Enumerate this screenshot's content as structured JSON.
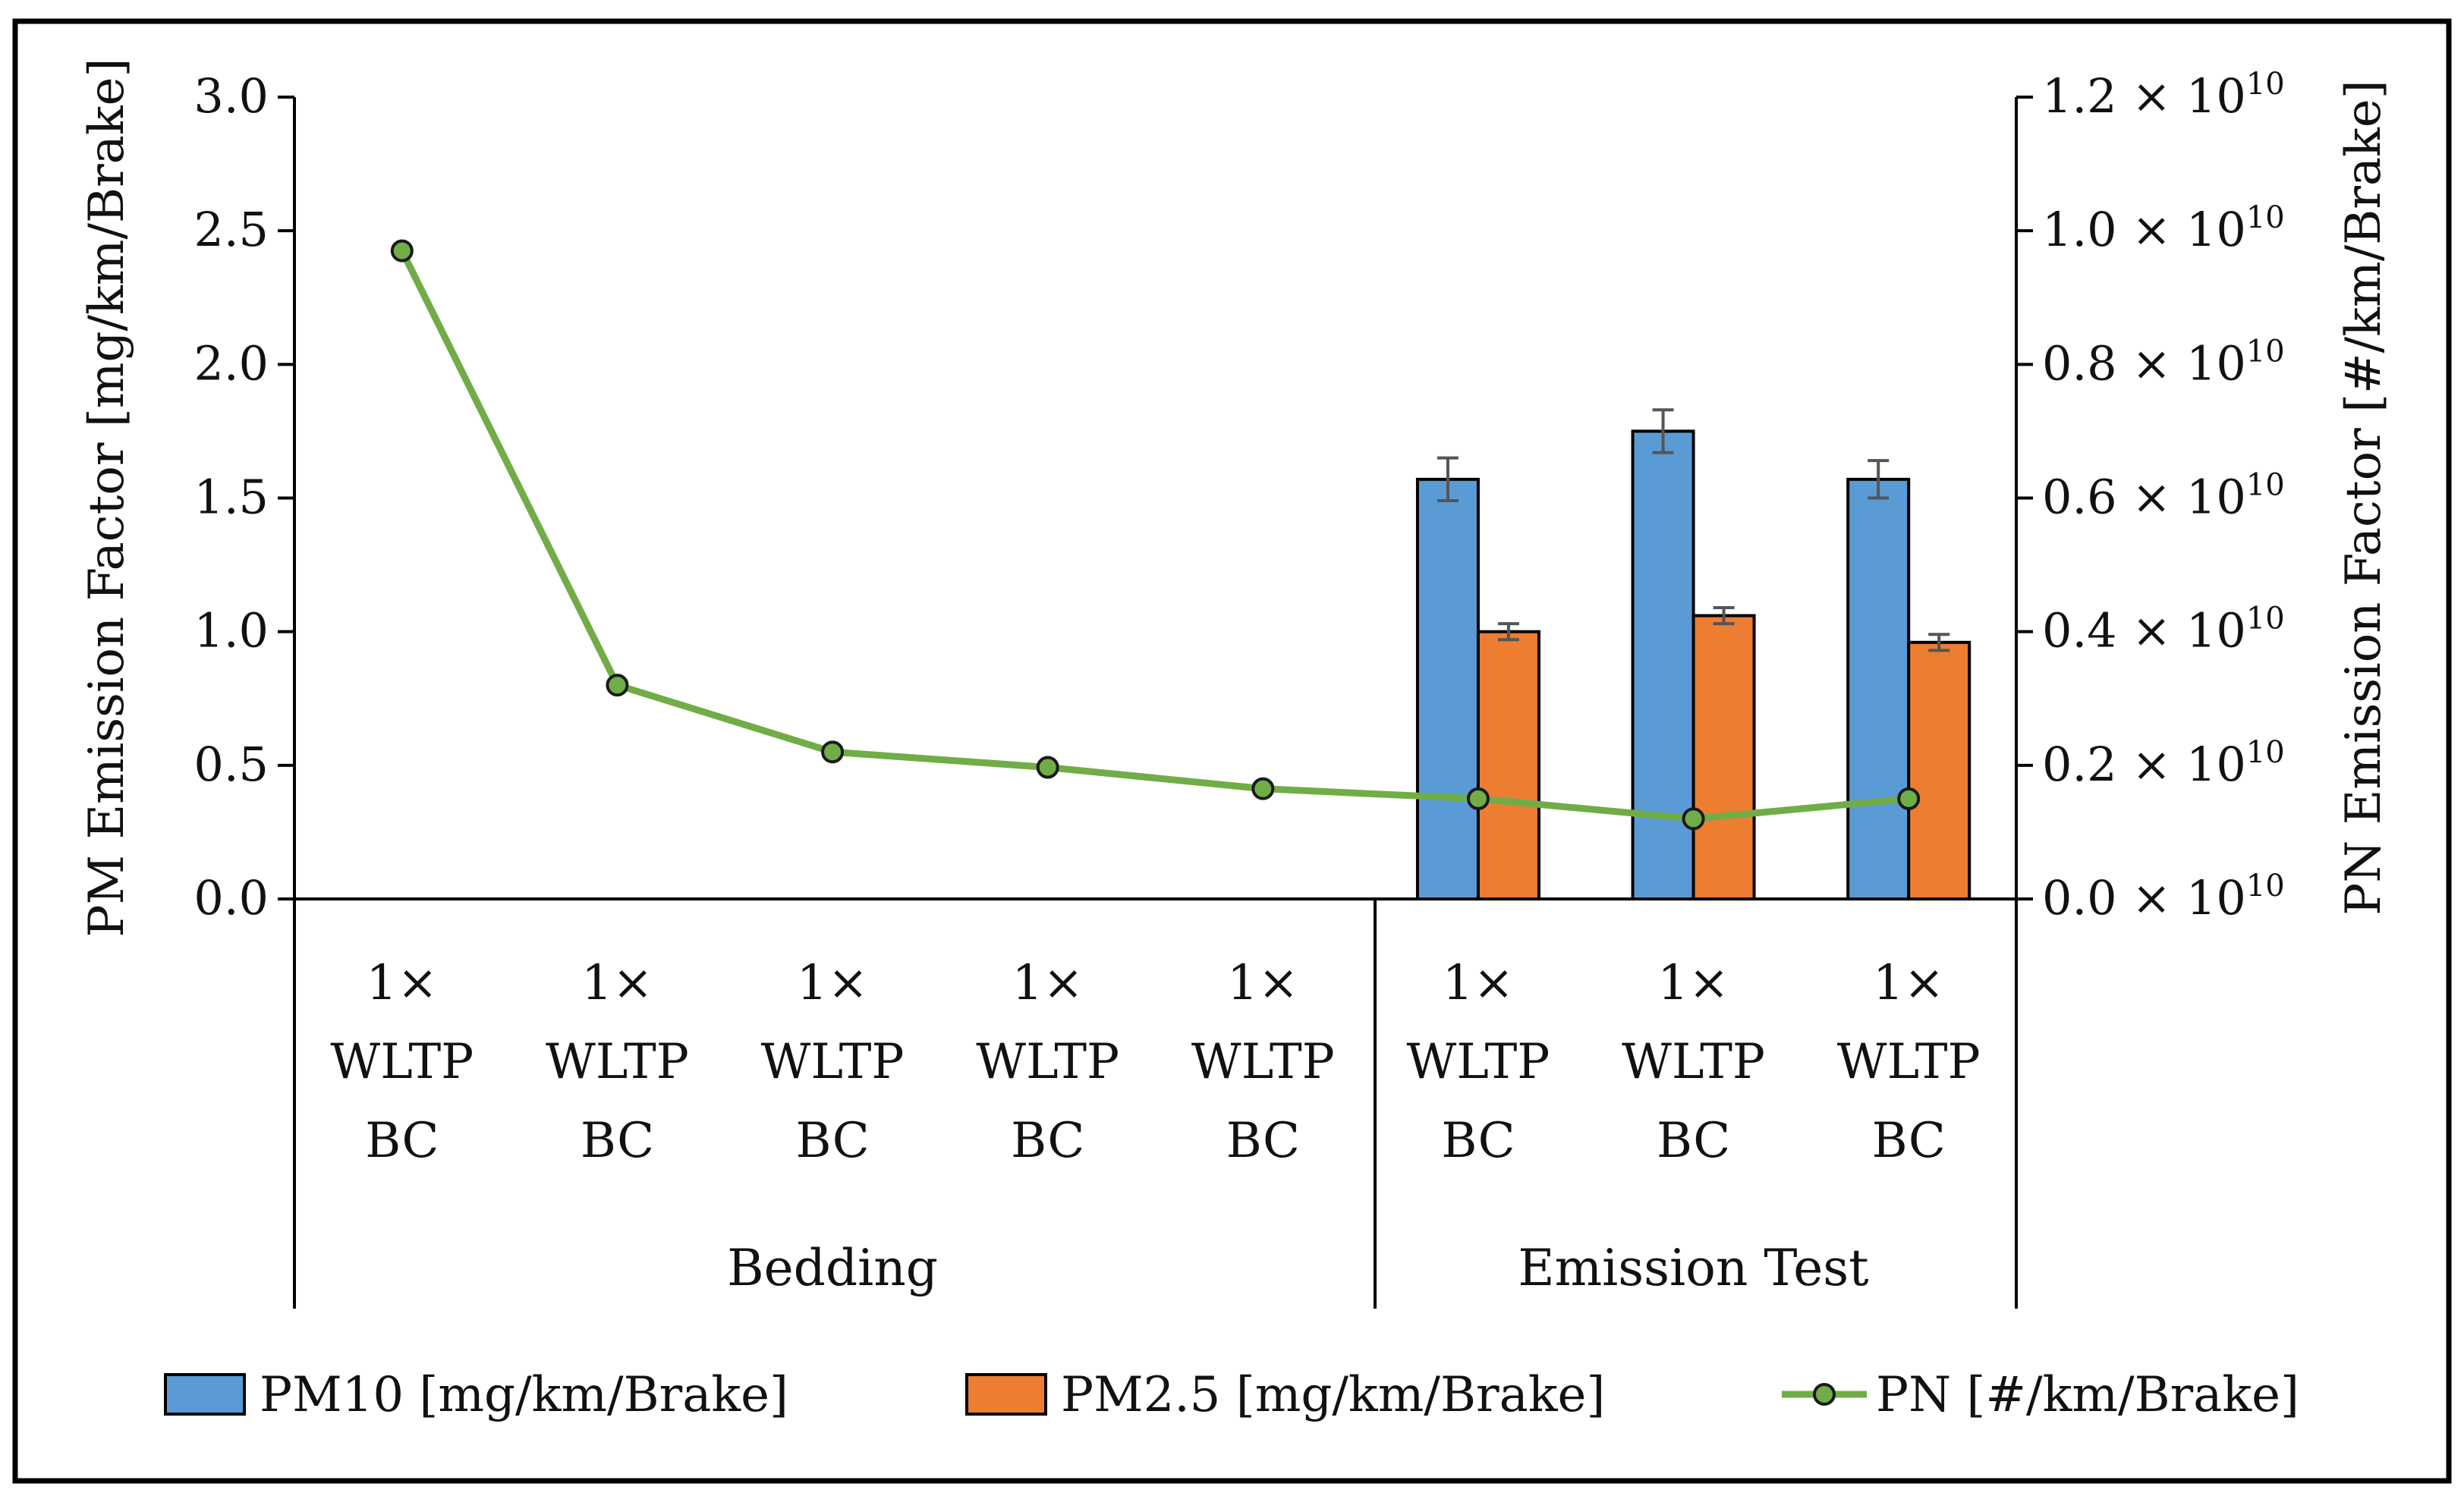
{
  "chart_data": {
    "type": "bar",
    "categories": [
      "1× WLTP BC",
      "1× WLTP BC",
      "1× WLTP BC",
      "1× WLTP BC",
      "1× WLTP BC",
      "1× WLTP BC",
      "1× WLTP BC",
      "1× WLTP BC"
    ],
    "category_lines": [
      [
        "1×",
        "WLTP",
        "BC"
      ],
      [
        "1×",
        "WLTP",
        "BC"
      ],
      [
        "1×",
        "WLTP",
        "BC"
      ],
      [
        "1×",
        "WLTP",
        "BC"
      ],
      [
        "1×",
        "WLTP",
        "BC"
      ],
      [
        "1×",
        "WLTP",
        "BC"
      ],
      [
        "1×",
        "WLTP",
        "BC"
      ],
      [
        "1×",
        "WLTP",
        "BC"
      ]
    ],
    "groups": [
      {
        "label": "Bedding",
        "start": 0,
        "end": 4
      },
      {
        "label": "Emission Test",
        "start": 5,
        "end": 7
      }
    ],
    "series": [
      {
        "name": "PM10 [mg/km/Brake]",
        "kind": "bar",
        "axis": "left",
        "color": "#5b9bd5",
        "values": [
          null,
          null,
          null,
          null,
          null,
          1.57,
          1.75,
          1.57
        ],
        "errors": [
          null,
          null,
          null,
          null,
          null,
          0.08,
          0.08,
          0.07
        ]
      },
      {
        "name": "PM2.5 [mg/km/Brake]",
        "kind": "bar",
        "axis": "left",
        "color": "#ed7d31",
        "values": [
          null,
          null,
          null,
          null,
          null,
          1.0,
          1.06,
          0.96
        ],
        "errors": [
          null,
          null,
          null,
          null,
          null,
          0.03,
          0.03,
          0.03
        ]
      },
      {
        "name": "PN [#/km/Brake]",
        "kind": "line",
        "axis": "right",
        "color": "#70ad47",
        "marker_color": "#70ad47",
        "values": [
          9700000000.0,
          3200000000.0,
          2200000000.0,
          1970000000.0,
          1650000000.0,
          1500000000.0,
          1200000000.0,
          1500000000.0
        ]
      }
    ],
    "y_left": {
      "label": "PM Emission Factor [mg/km/Brake]",
      "ylim": [
        0,
        3.0
      ],
      "ticks": [
        0.0,
        0.5,
        1.0,
        1.5,
        2.0,
        2.5,
        3.0
      ],
      "tick_labels": [
        "0.0",
        "0.5",
        "1.0",
        "1.5",
        "2.0",
        "2.5",
        "3.0"
      ]
    },
    "y_right": {
      "label": "PN Emission Factor [#/km/Brake]",
      "ylim": [
        0,
        12000000000.0
      ],
      "ticks": [
        0,
        2000000000.0,
        4000000000.0,
        6000000000.0,
        8000000000.0,
        10000000000.0,
        12000000000.0
      ],
      "tick_mantissas": [
        "0.0",
        "0.2",
        "0.4",
        "0.6",
        "0.8",
        "1.0",
        "1.2"
      ],
      "tick_suffix": " × 10",
      "tick_exponent": "10"
    },
    "legend_placement": "bottom",
    "grid": false
  }
}
